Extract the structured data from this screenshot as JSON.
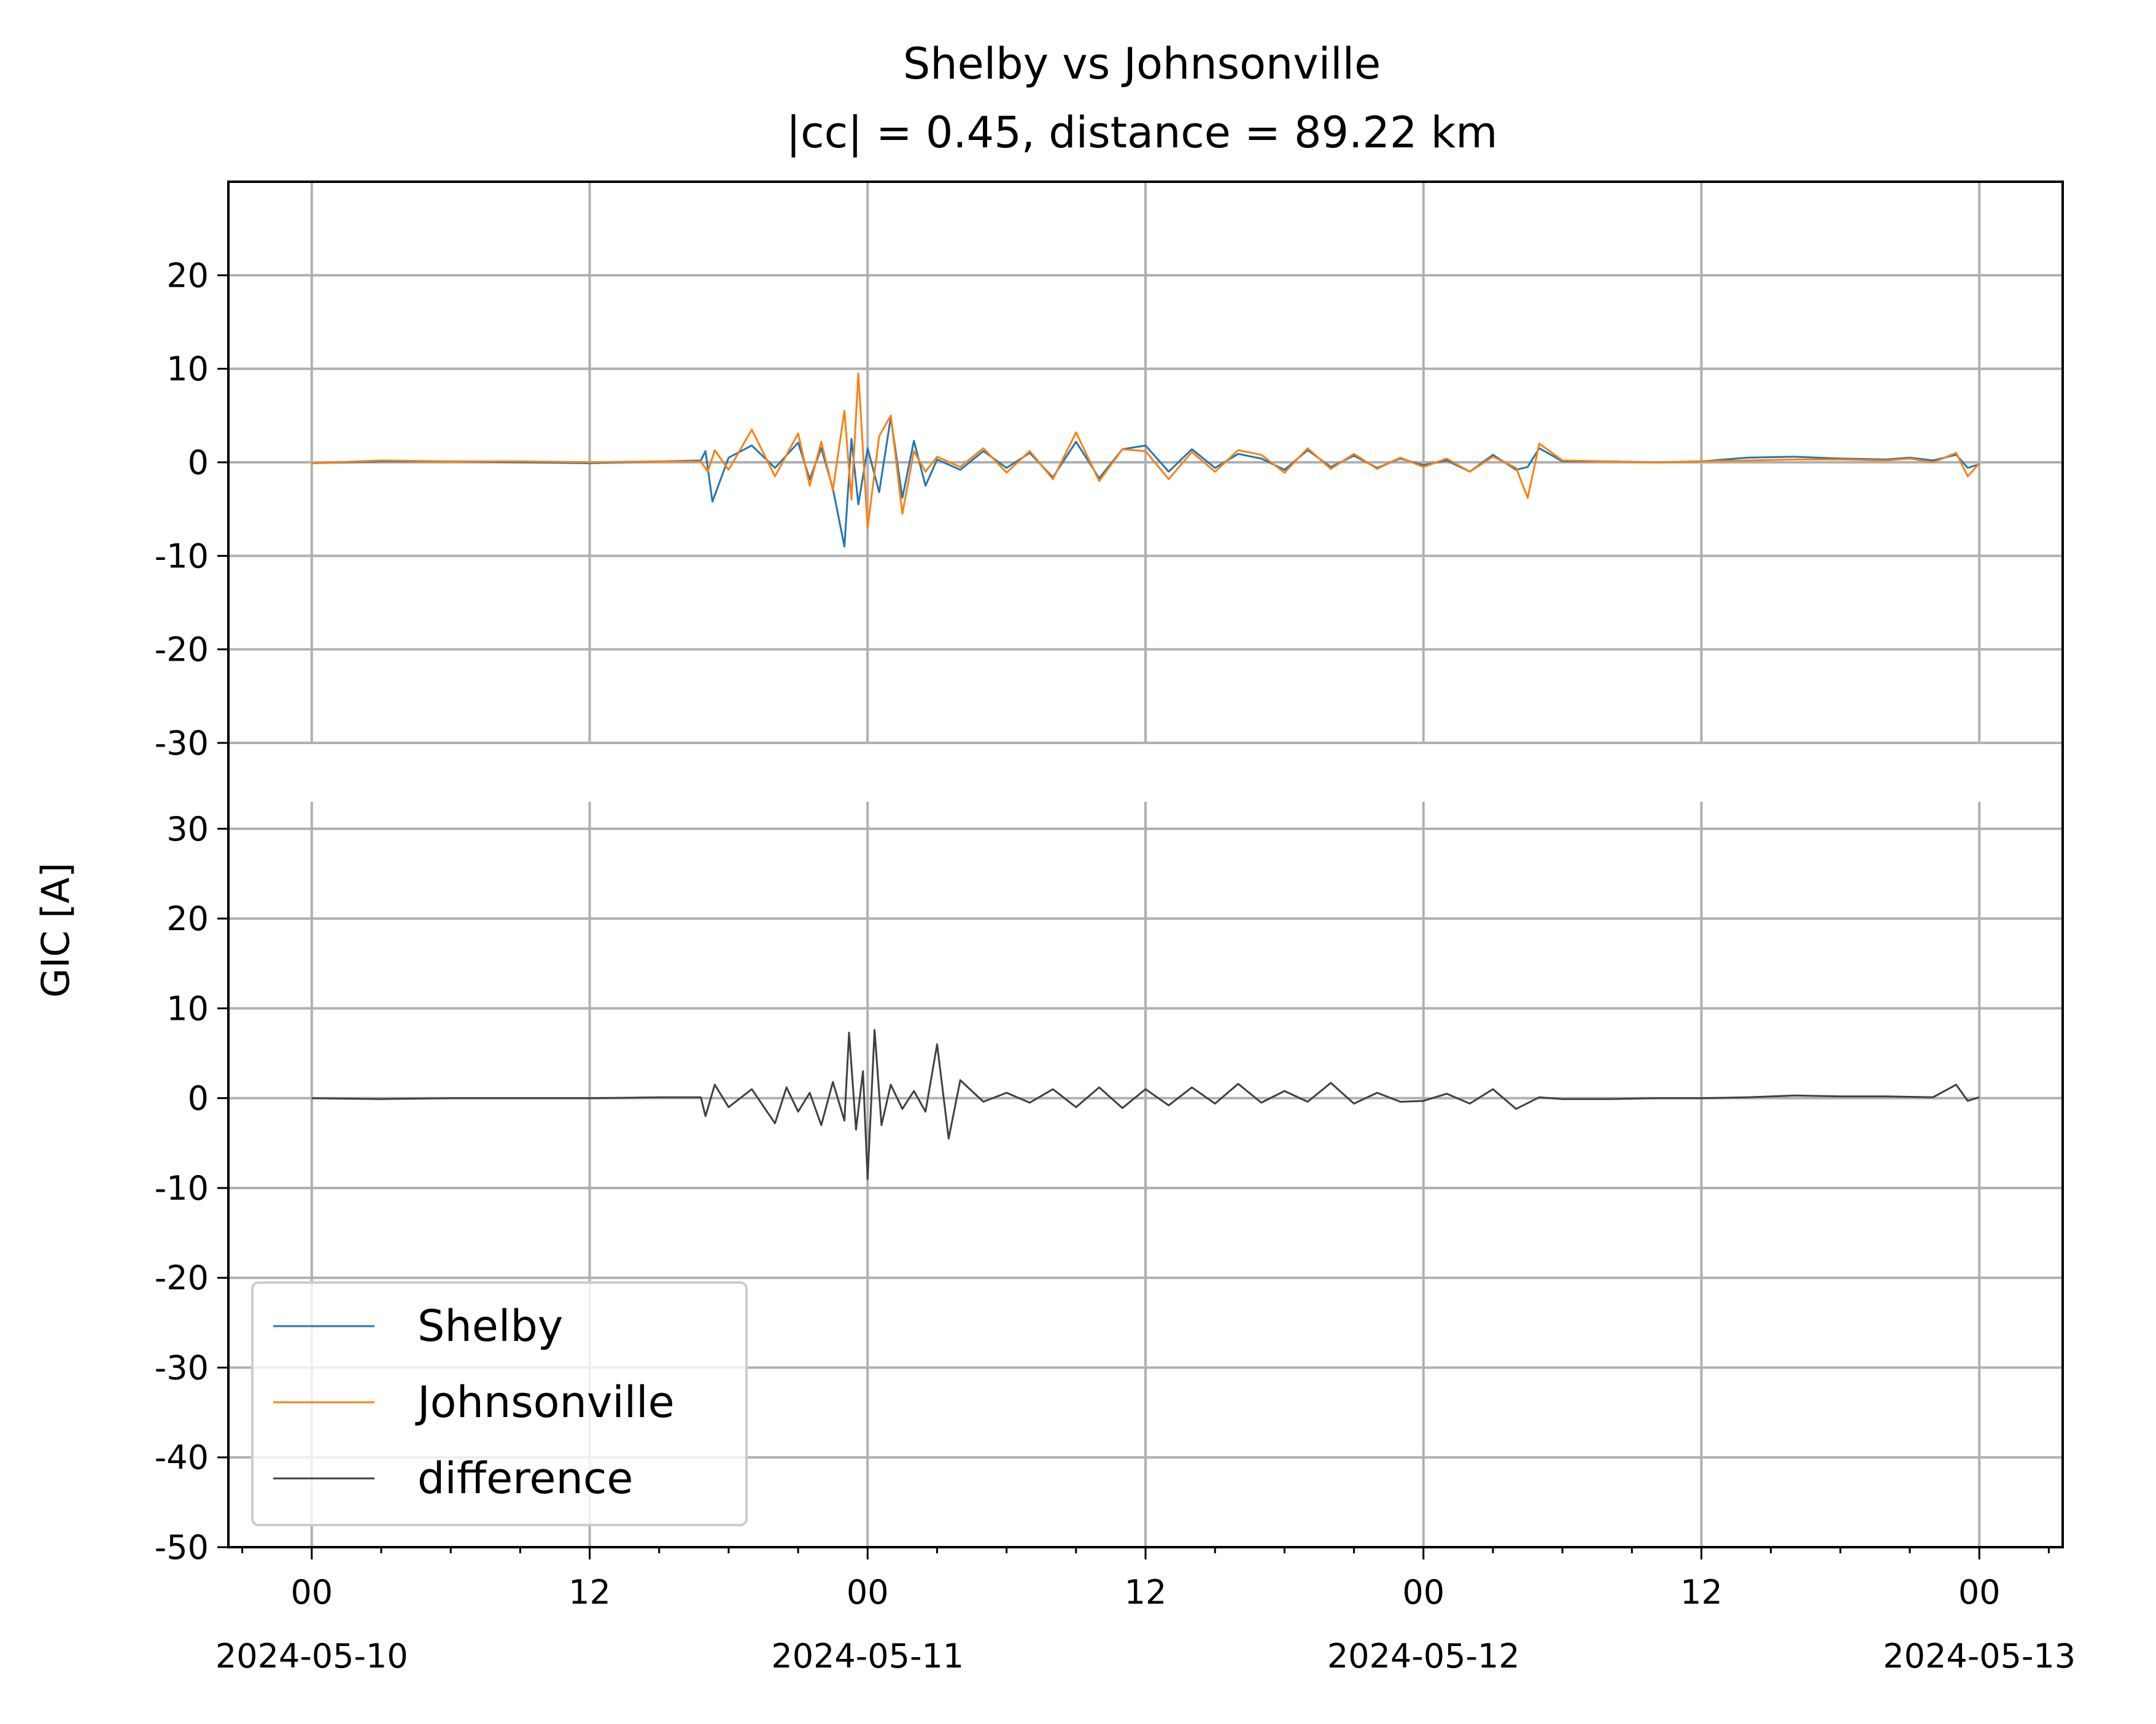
{
  "chart_data": {
    "type": "line",
    "title": "Shelby vs Johnsonville",
    "subtitle": "|cc| = 0.45, distance = 89.22 km",
    "ylabel": "GIC [A]",
    "colors": {
      "Shelby": "#1f77b4",
      "Johnsonville": "#ff7f0e",
      "difference": "#404040",
      "grid": "#b0b0b0"
    },
    "x_ticks": [
      {
        "hour": 0,
        "label": "00",
        "date": "2024-05-10"
      },
      {
        "hour": 12,
        "label": "12",
        "date": ""
      },
      {
        "hour": 24,
        "label": "00",
        "date": "2024-05-11"
      },
      {
        "hour": 36,
        "label": "12",
        "date": ""
      },
      {
        "hour": 48,
        "label": "00",
        "date": "2024-05-12"
      },
      {
        "hour": 60,
        "label": "12",
        "date": ""
      },
      {
        "hour": 72,
        "label": "00",
        "date": "2024-05-13"
      }
    ],
    "xlim_hours": [
      -3.6,
      75.6
    ],
    "legend": {
      "placement": "lower-left",
      "entries": [
        "Shelby",
        "Johnsonville",
        "difference"
      ]
    },
    "grid": true,
    "panels": [
      {
        "name": "top",
        "ylim": [
          -30,
          30
        ],
        "yticks": [
          20,
          10,
          0,
          -10,
          -20,
          -30
        ],
        "ytick_labels": [
          "20",
          "10",
          "0",
          "-10",
          "-20",
          "-30"
        ],
        "series": [
          {
            "name": "Shelby",
            "x_hours": [
              0,
              3,
              6,
              9,
              12,
              15,
              16.8,
              17,
              17.3,
              18,
              19,
              20,
              21,
              21.5,
              22,
              22.5,
              23,
              23.3,
              23.6,
              24,
              24.5,
              25,
              25.5,
              26,
              26.5,
              27,
              28,
              29,
              30,
              31,
              32,
              33,
              34,
              35,
              36,
              37,
              38,
              39,
              40,
              41,
              42,
              43,
              44,
              45,
              46,
              47,
              48,
              49,
              50,
              51,
              52,
              52.5,
              53,
              54,
              56,
              58,
              60,
              62,
              64,
              66,
              68,
              69,
              70,
              71,
              71.5,
              72
            ],
            "values": [
              -0.1,
              0.1,
              0.1,
              0.0,
              -0.1,
              0.1,
              0.2,
              1.2,
              -4.2,
              0.5,
              1.8,
              -0.6,
              2.1,
              -1.8,
              1.5,
              -2.8,
              -9.0,
              2.5,
              -4.5,
              1.5,
              -3.2,
              4.8,
              -3.8,
              2.3,
              -2.5,
              0.3,
              -0.8,
              1.2,
              -0.6,
              1.0,
              -1.6,
              2.2,
              -1.7,
              1.4,
              1.8,
              -1.0,
              1.4,
              -0.6,
              0.9,
              0.4,
              -0.8,
              1.3,
              -0.5,
              0.7,
              -0.6,
              0.4,
              -0.3,
              0.2,
              -1.0,
              0.8,
              -0.8,
              -0.5,
              1.5,
              0.1,
              0.1,
              0.0,
              0.1,
              0.5,
              0.6,
              0.4,
              0.3,
              0.5,
              0.2,
              0.8,
              -0.6,
              -0.2
            ]
          },
          {
            "name": "Johnsonville",
            "x_hours": [
              0,
              3,
              6,
              9,
              12,
              15,
              16.8,
              17.1,
              17.4,
              18,
              19,
              20,
              21,
              21.5,
              22,
              22.5,
              23,
              23.3,
              23.6,
              24,
              24.5,
              25,
              25.5,
              26,
              26.5,
              27,
              28,
              29,
              30,
              31,
              32,
              33,
              34,
              35,
              36,
              37,
              38,
              39,
              40,
              41,
              42,
              43,
              44,
              45,
              46,
              47,
              48,
              49,
              50,
              51,
              52,
              52.5,
              53,
              54,
              56,
              58,
              60,
              62,
              64,
              66,
              68,
              69,
              70,
              71,
              71.5,
              72
            ],
            "values": [
              -0.1,
              0.2,
              0.1,
              0.1,
              0.0,
              0.1,
              0.1,
              -1.0,
              1.3,
              -0.8,
              3.5,
              -1.5,
              3.1,
              -2.5,
              2.2,
              -3.0,
              5.5,
              -4.0,
              9.5,
              -7.0,
              2.8,
              5.0,
              -5.5,
              1.2,
              -1.0,
              0.6,
              -0.5,
              1.5,
              -1.1,
              1.2,
              -1.8,
              3.2,
              -2.0,
              1.4,
              1.2,
              -1.8,
              1.1,
              -1.0,
              1.3,
              0.8,
              -1.1,
              1.5,
              -0.7,
              0.9,
              -0.7,
              0.5,
              -0.5,
              0.4,
              -1.0,
              0.6,
              -0.6,
              -3.8,
              2.0,
              0.2,
              0.1,
              0.0,
              0.1,
              0.2,
              0.3,
              0.3,
              0.2,
              0.4,
              0.0,
              1.0,
              -1.5,
              -0.1
            ]
          }
        ]
      },
      {
        "name": "bottom",
        "ylim": [
          -50,
          33
        ],
        "yticks": [
          30,
          20,
          10,
          0,
          -10,
          -20,
          -30,
          -40,
          -50
        ],
        "ytick_labels": [
          "30",
          "20",
          "10",
          "0",
          "-10",
          "-20",
          "-30",
          "-40",
          "-50"
        ],
        "series": [
          {
            "name": "difference",
            "x_hours": [
              0,
              3,
              6,
              9,
              12,
              15,
              16.8,
              17,
              17.4,
              18,
              19,
              20,
              20.5,
              21,
              21.5,
              22,
              22.5,
              23,
              23.2,
              23.5,
              23.8,
              24,
              24.3,
              24.6,
              25,
              25.5,
              26,
              26.5,
              27,
              27.5,
              28,
              29,
              30,
              31,
              32,
              33,
              34,
              35,
              36,
              37,
              38,
              39,
              40,
              41,
              42,
              43,
              44,
              45,
              46,
              47,
              48,
              49,
              50,
              51,
              52,
              53,
              54,
              56,
              58,
              60,
              62,
              64,
              66,
              68,
              70,
              71,
              71.5,
              72
            ],
            "values": [
              0.0,
              -0.1,
              0.0,
              0.0,
              0.0,
              0.1,
              0.1,
              -2.0,
              1.5,
              -1.0,
              1.0,
              -2.8,
              1.2,
              -1.5,
              0.6,
              -3.0,
              1.8,
              -2.5,
              7.3,
              -3.5,
              3.0,
              -9.0,
              7.6,
              -3.0,
              1.5,
              -1.2,
              0.8,
              -1.5,
              6.0,
              -4.5,
              2.0,
              -0.4,
              0.6,
              -0.5,
              1.0,
              -1.0,
              1.2,
              -1.1,
              1.0,
              -0.8,
              1.2,
              -0.6,
              1.6,
              -0.5,
              0.8,
              -0.4,
              1.7,
              -0.6,
              0.6,
              -0.4,
              -0.3,
              0.5,
              -0.6,
              1.0,
              -1.2,
              0.1,
              -0.1,
              -0.1,
              0.0,
              0.0,
              0.1,
              0.3,
              0.2,
              0.2,
              0.1,
              1.5,
              -0.3,
              0.1
            ]
          }
        ]
      }
    ]
  }
}
